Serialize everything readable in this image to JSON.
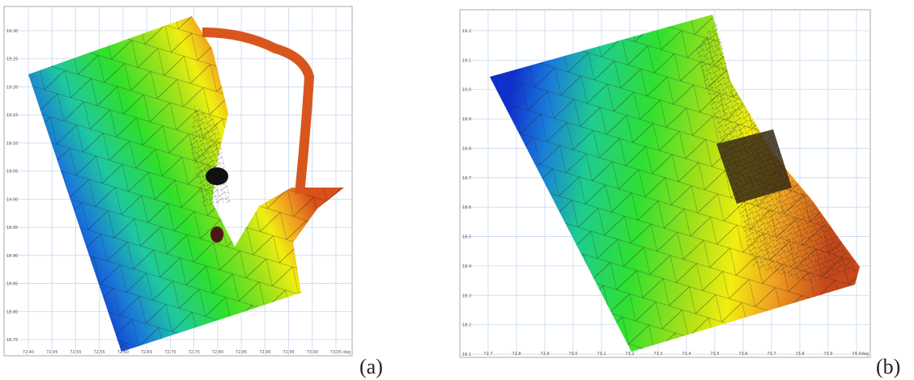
{
  "panels": [
    {
      "label": "(a)",
      "unit": "deg",
      "xticks": [
        "72.40",
        "72.45",
        "72.50",
        "72.55",
        "72.60",
        "72.65",
        "72.70",
        "72.75",
        "72.80",
        "72.85",
        "72.90",
        "72.95",
        "73.00",
        "73.05"
      ],
      "yticks": [
        "19.30",
        "19.25",
        "19.20",
        "19.15",
        "19.10",
        "19.05",
        "19.00",
        "18.95",
        "18.90",
        "18.85",
        "18.80",
        "18.75"
      ]
    },
    {
      "label": "(b)",
      "unit": "deg",
      "xticks": [
        "72.7",
        "72.8",
        "72.9",
        "73.0",
        "73.1",
        "73.2",
        "73.3",
        "73.4",
        "73.5",
        "73.6",
        "73.7",
        "73.8",
        "73.9",
        "74.0"
      ],
      "yticks": [
        "19.2",
        "19.1",
        "19.0",
        "18.9",
        "18.8",
        "18.7",
        "18.6",
        "18.5",
        "18.4",
        "18.3",
        "18.2",
        "18.1"
      ]
    }
  ]
}
